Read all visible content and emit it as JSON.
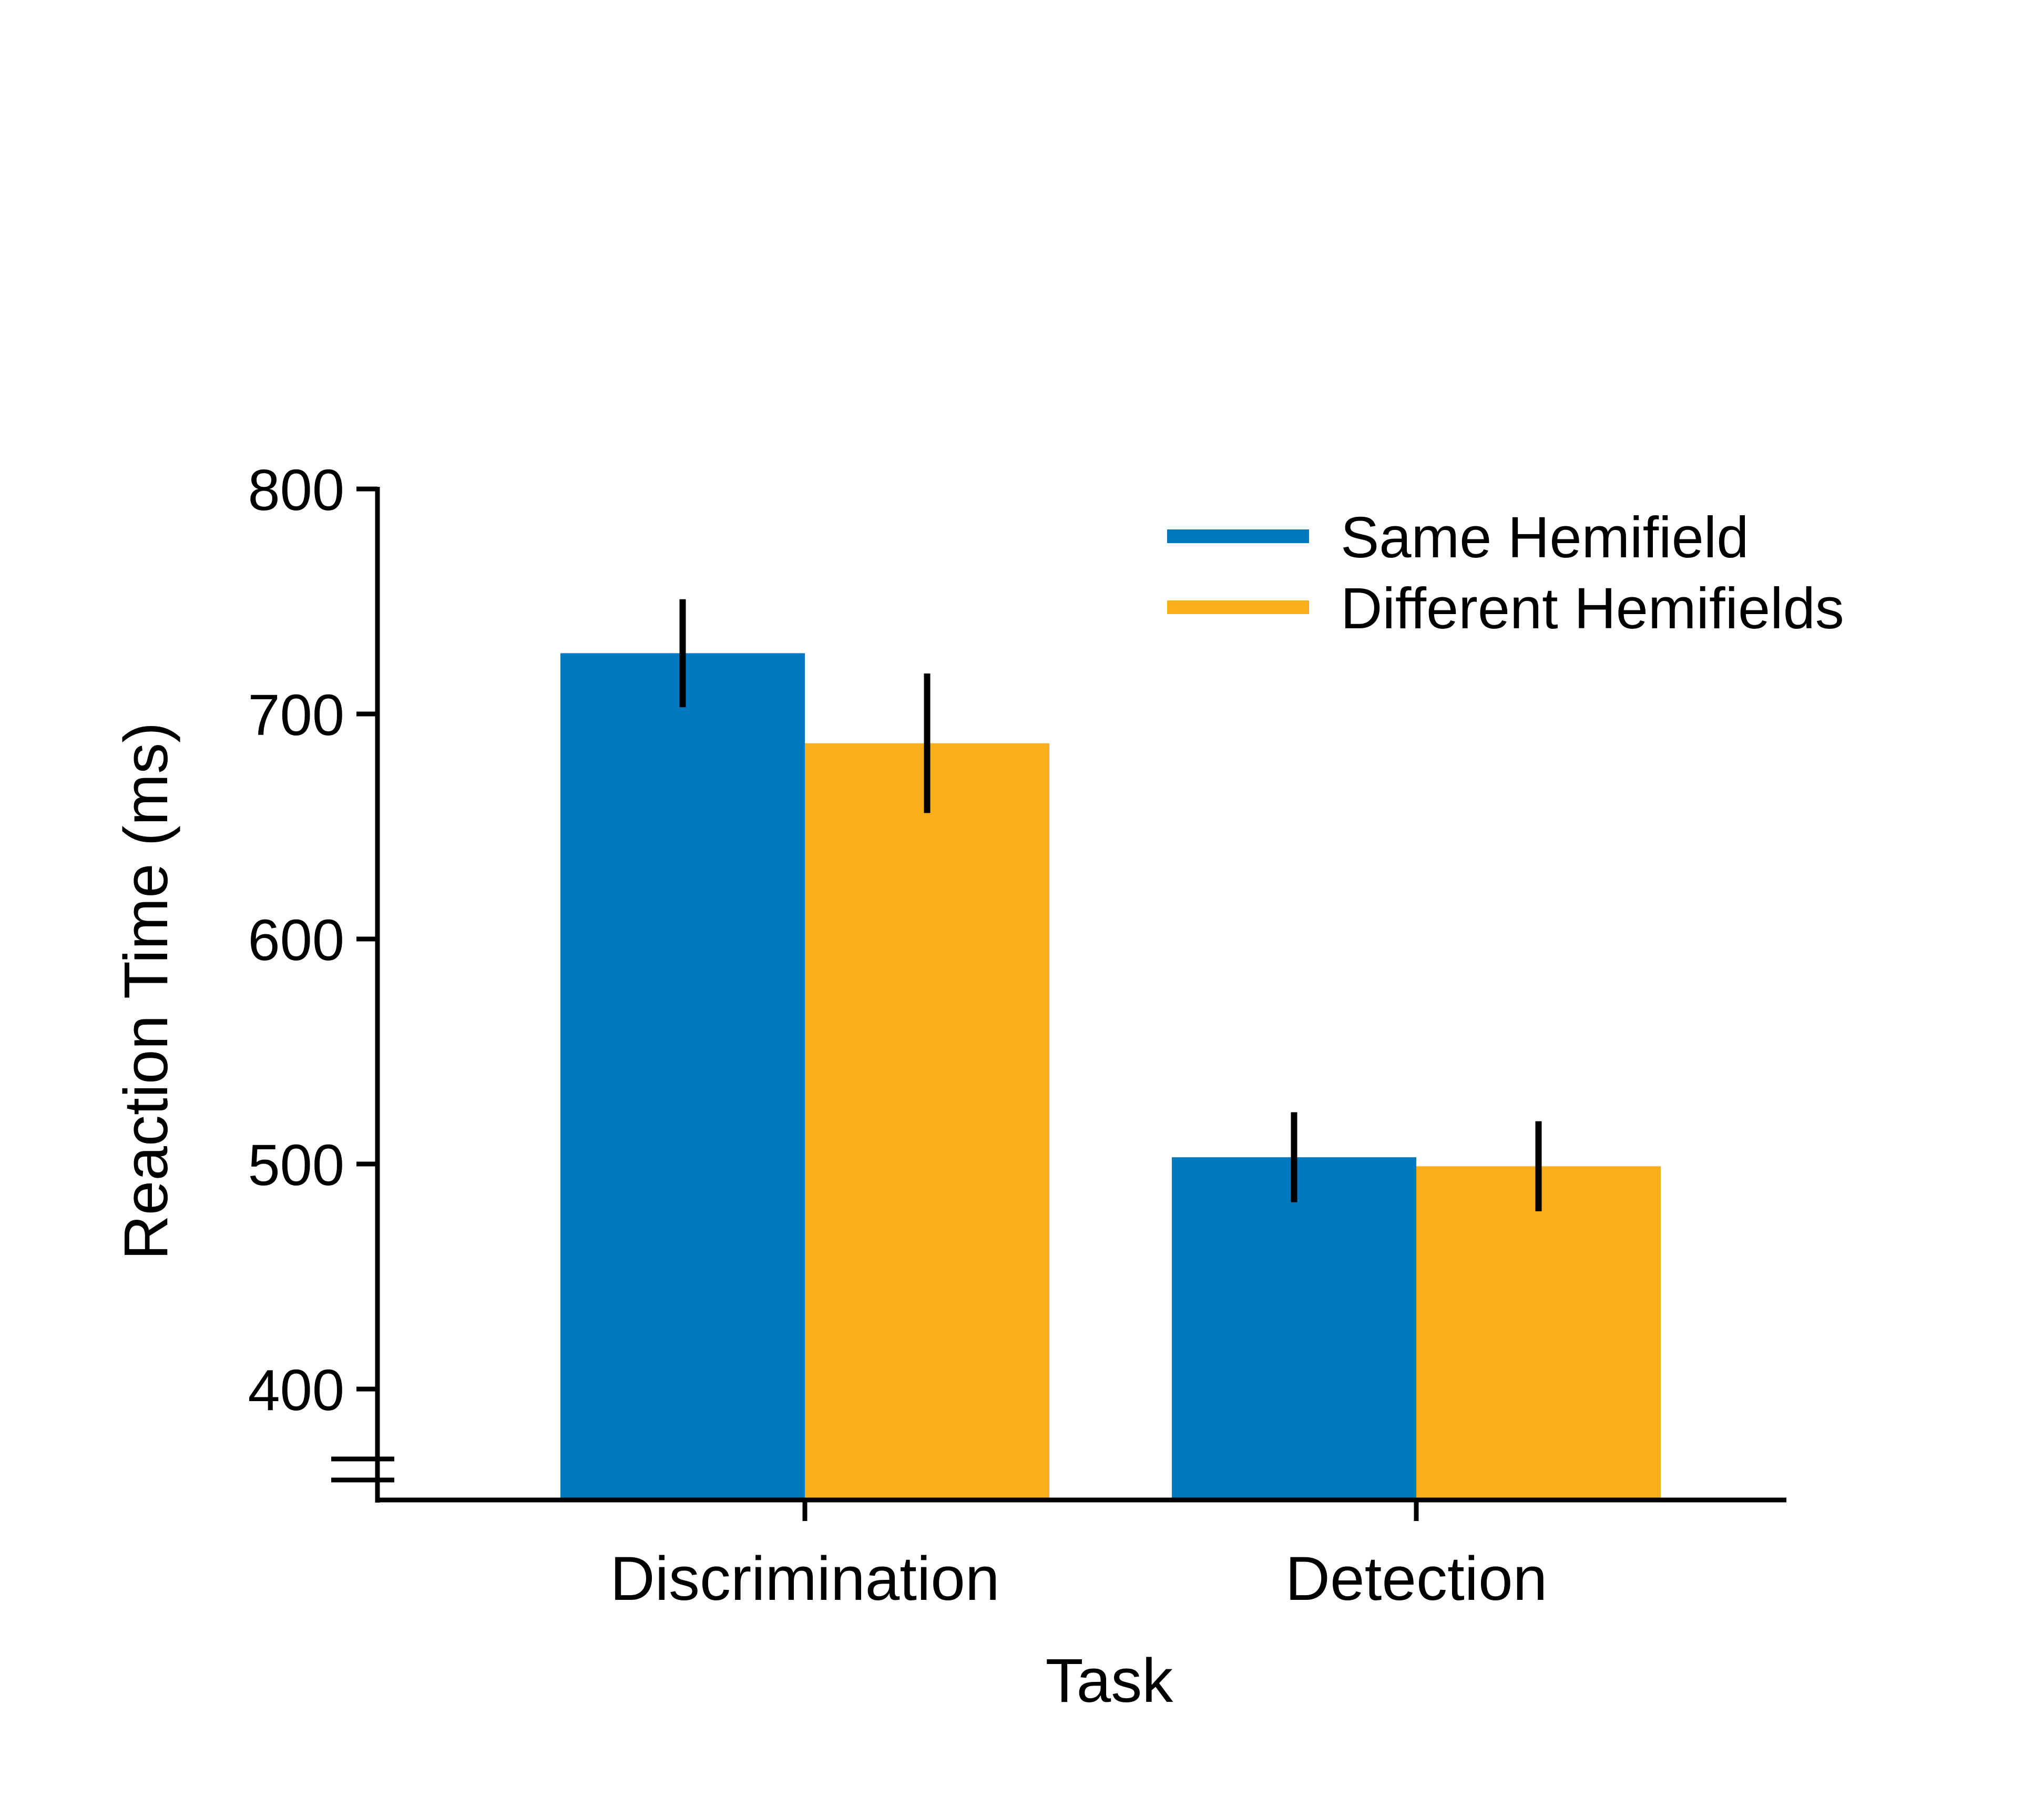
{
  "chart_data": {
    "type": "bar",
    "title": "",
    "xlabel": "Task",
    "ylabel": "Reaction Time (ms)",
    "categories": [
      "Discrimination",
      "Detection"
    ],
    "series": [
      {
        "name": "Same Hemifield",
        "color": "#0079C1",
        "values": [
          727,
          503
        ],
        "error": [
          24,
          20
        ]
      },
      {
        "name": "Different Hemifields",
        "color": "#FBAE1B",
        "values": [
          687,
          499
        ],
        "error": [
          31,
          20
        ]
      }
    ],
    "yticks": [
      400,
      500,
      600,
      700,
      800
    ],
    "ylim": [
      350,
      800
    ],
    "axis_break": true,
    "grid": false,
    "legend": "top-right"
  }
}
